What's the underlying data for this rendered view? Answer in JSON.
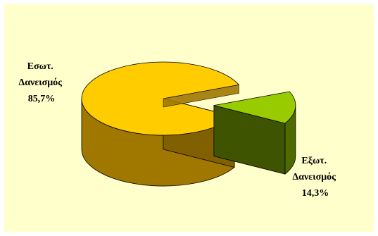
{
  "chart_data": {
    "type": "pie",
    "title": "",
    "slices": [
      {
        "label_lines": [
          "Εσωτ.",
          "Δανεισμός",
          "85,7%"
        ],
        "value": 85.7,
        "top_color": "#ffcc00",
        "side_color": "#a07800",
        "dark_side_color": "#806000"
      },
      {
        "label_lines": [
          "Εξωτ.",
          "Δανεισμός",
          "14,3%"
        ],
        "value": 14.3,
        "top_color": "#99cc00",
        "side_color": "#4f6b00",
        "dark_side_color": "#3e5400"
      }
    ],
    "background_color": "#ffffcc",
    "exploded_slice": 1,
    "legend": "none"
  }
}
